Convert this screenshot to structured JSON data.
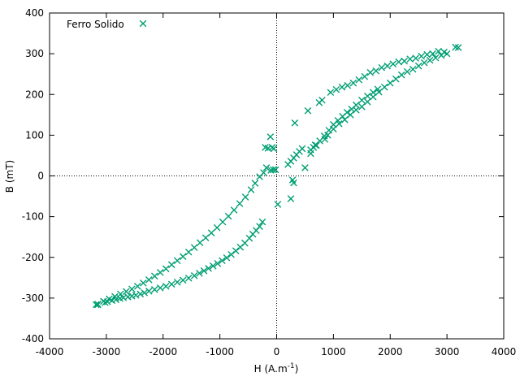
{
  "chart_data": {
    "type": "scatter",
    "xlabel": "H (A.m",
    "xlabel_sup": "-1",
    "xlabel_end": ")",
    "ylabel": "B (mT)",
    "xlim": [
      -4000,
      4000
    ],
    "ylim": [
      -400,
      400
    ],
    "x_ticks": [
      -4000,
      -3000,
      -2000,
      -1000,
      0,
      1000,
      2000,
      3000,
      4000
    ],
    "y_ticks": [
      -400,
      -300,
      -200,
      -100,
      0,
      100,
      200,
      300,
      400
    ],
    "grid": false,
    "zero_axes": true,
    "legend_position": "top-left",
    "series": [
      {
        "name": "Ferro Solido",
        "color": "#009e73",
        "marker": "x",
        "points": [
          [
            -3180,
            -316
          ],
          [
            -3150,
            -316
          ],
          [
            -3020,
            -311
          ],
          [
            -2980,
            -309
          ],
          [
            -2900,
            -306
          ],
          [
            -2830,
            -304
          ],
          [
            -2760,
            -301
          ],
          [
            -2700,
            -299
          ],
          [
            -2620,
            -297
          ],
          [
            -2550,
            -295
          ],
          [
            -2480,
            -293
          ],
          [
            -2400,
            -290
          ],
          [
            -2330,
            -287
          ],
          [
            -2250,
            -283
          ],
          [
            -2150,
            -279
          ],
          [
            -2050,
            -275
          ],
          [
            -1950,
            -271
          ],
          [
            -1850,
            -266
          ],
          [
            -1750,
            -261
          ],
          [
            -1650,
            -256
          ],
          [
            -1550,
            -251
          ],
          [
            -1450,
            -245
          ],
          [
            -1360,
            -239
          ],
          [
            -1280,
            -233
          ],
          [
            -1200,
            -227
          ],
          [
            -1120,
            -221
          ],
          [
            -1040,
            -215
          ],
          [
            -960,
            -208
          ],
          [
            -880,
            -201
          ],
          [
            -800,
            -193
          ],
          [
            -720,
            -184
          ],
          [
            -640,
            -175
          ],
          [
            -560,
            -165
          ],
          [
            -480,
            -153
          ],
          [
            -420,
            -143
          ],
          [
            -360,
            -134
          ],
          [
            -300,
            -124
          ],
          [
            -250,
            -113
          ],
          [
            -3150,
            -315
          ],
          [
            -3050,
            -308
          ],
          [
            -2950,
            -302
          ],
          [
            -2850,
            -296
          ],
          [
            -2750,
            -290
          ],
          [
            -2650,
            -284
          ],
          [
            -2550,
            -278
          ],
          [
            -2450,
            -271
          ],
          [
            -2350,
            -263
          ],
          [
            -2250,
            -255
          ],
          [
            -2150,
            -246
          ],
          [
            -2050,
            -237
          ],
          [
            -1950,
            -228
          ],
          [
            -1850,
            -218
          ],
          [
            -1750,
            -208
          ],
          [
            -1650,
            -198
          ],
          [
            -1550,
            -187
          ],
          [
            -1450,
            -176
          ],
          [
            -1350,
            -164
          ],
          [
            -1250,
            -152
          ],
          [
            -1150,
            -140
          ],
          [
            -1050,
            -127
          ],
          [
            -950,
            -113
          ],
          [
            -850,
            -99
          ],
          [
            -750,
            -84
          ],
          [
            -650,
            -68
          ],
          [
            -550,
            -52
          ],
          [
            -450,
            -34
          ],
          [
            -380,
            -18
          ],
          [
            -300,
            -2
          ],
          [
            -230,
            8
          ],
          [
            -180,
            20
          ],
          [
            -200,
            70
          ],
          [
            -150,
            68
          ],
          [
            -110,
            96
          ],
          [
            -80,
            70
          ],
          [
            -50,
            67
          ],
          [
            -20,
            15
          ],
          [
            -60,
            15
          ],
          [
            -100,
            14
          ],
          [
            20,
            -70
          ],
          [
            250,
            -56
          ],
          [
            280,
            -10
          ],
          [
            300,
            -17
          ],
          [
            320,
            130
          ],
          [
            200,
            28
          ],
          [
            250,
            36
          ],
          [
            300,
            44
          ],
          [
            350,
            52
          ],
          [
            400,
            60
          ],
          [
            450,
            67
          ],
          [
            500,
            20
          ],
          [
            550,
            160
          ],
          [
            600,
            55
          ],
          [
            650,
            70
          ],
          [
            700,
            75
          ],
          [
            750,
            180
          ],
          [
            800,
            186
          ],
          [
            850,
            90
          ],
          [
            900,
            100
          ],
          [
            950,
            205
          ],
          [
            1000,
            115
          ],
          [
            1050,
            212
          ],
          [
            1100,
            128
          ],
          [
            1150,
            218
          ],
          [
            1200,
            138
          ],
          [
            1250,
            222
          ],
          [
            1300,
            150
          ],
          [
            1350,
            228
          ],
          [
            1400,
            162
          ],
          [
            1450,
            236
          ],
          [
            1500,
            170
          ],
          [
            1550,
            244
          ],
          [
            1600,
            182
          ],
          [
            1650,
            254
          ],
          [
            1700,
            194
          ],
          [
            1750,
            258
          ],
          [
            1800,
            206
          ],
          [
            1850,
            266
          ],
          [
            1900,
            218
          ],
          [
            1950,
            270
          ],
          [
            2000,
            228
          ],
          [
            2050,
            275
          ],
          [
            2100,
            238
          ],
          [
            2150,
            280
          ],
          [
            2200,
            248
          ],
          [
            2250,
            282
          ],
          [
            2300,
            256
          ],
          [
            2350,
            287
          ],
          [
            2400,
            262
          ],
          [
            2450,
            289
          ],
          [
            2500,
            270
          ],
          [
            2550,
            294
          ],
          [
            2600,
            278
          ],
          [
            2650,
            298
          ],
          [
            2700,
            284
          ],
          [
            2750,
            300
          ],
          [
            2800,
            290
          ],
          [
            2850,
            306
          ],
          [
            2900,
            296
          ],
          [
            2950,
            304
          ],
          [
            3000,
            300
          ],
          [
            3150,
            316
          ],
          [
            3200,
            315
          ],
          [
            1780,
            213
          ],
          [
            1700,
            205
          ],
          [
            1600,
            196
          ],
          [
            1500,
            186
          ],
          [
            1400,
            174
          ],
          [
            1320,
            164
          ],
          [
            1240,
            156
          ],
          [
            1160,
            146
          ],
          [
            1080,
            136
          ],
          [
            1000,
            126
          ],
          [
            920,
            112
          ],
          [
            840,
            98
          ],
          [
            760,
            86
          ],
          [
            680,
            76
          ],
          [
            600,
            64
          ]
        ]
      }
    ]
  }
}
